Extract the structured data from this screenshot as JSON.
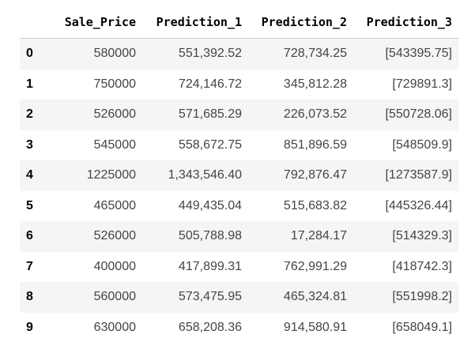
{
  "table": {
    "columns": [
      "",
      "Sale_Price",
      "Prediction_1",
      "Prediction_2",
      "Prediction_3"
    ],
    "rows": [
      {
        "index": "0",
        "sale_price": "580000",
        "prediction_1": "551,392.52",
        "prediction_2": "728,734.25",
        "prediction_3": "[543395.75]"
      },
      {
        "index": "1",
        "sale_price": "750000",
        "prediction_1": "724,146.72",
        "prediction_2": "345,812.28",
        "prediction_3": "[729891.3]"
      },
      {
        "index": "2",
        "sale_price": "526000",
        "prediction_1": "571,685.29",
        "prediction_2": "226,073.52",
        "prediction_3": "[550728.06]"
      },
      {
        "index": "3",
        "sale_price": "545000",
        "prediction_1": "558,672.75",
        "prediction_2": "851,896.59",
        "prediction_3": "[548509.9]"
      },
      {
        "index": "4",
        "sale_price": "1225000",
        "prediction_1": "1,343,546.40",
        "prediction_2": "792,876.47",
        "prediction_3": "[1273587.9]"
      },
      {
        "index": "5",
        "sale_price": "465000",
        "prediction_1": "449,435.04",
        "prediction_2": "515,683.82",
        "prediction_3": "[445326.44]"
      },
      {
        "index": "6",
        "sale_price": "526000",
        "prediction_1": "505,788.98",
        "prediction_2": "17,284.17",
        "prediction_3": "[514329.3]"
      },
      {
        "index": "7",
        "sale_price": "400000",
        "prediction_1": "417,899.31",
        "prediction_2": "762,991.29",
        "prediction_3": "[418742.3]"
      },
      {
        "index": "8",
        "sale_price": "560000",
        "prediction_1": "573,475.95",
        "prediction_2": "465,324.81",
        "prediction_3": "[551998.2]"
      },
      {
        "index": "9",
        "sale_price": "630000",
        "prediction_1": "658,208.36",
        "prediction_2": "914,580.91",
        "prediction_3": "[658049.1]"
      }
    ]
  }
}
